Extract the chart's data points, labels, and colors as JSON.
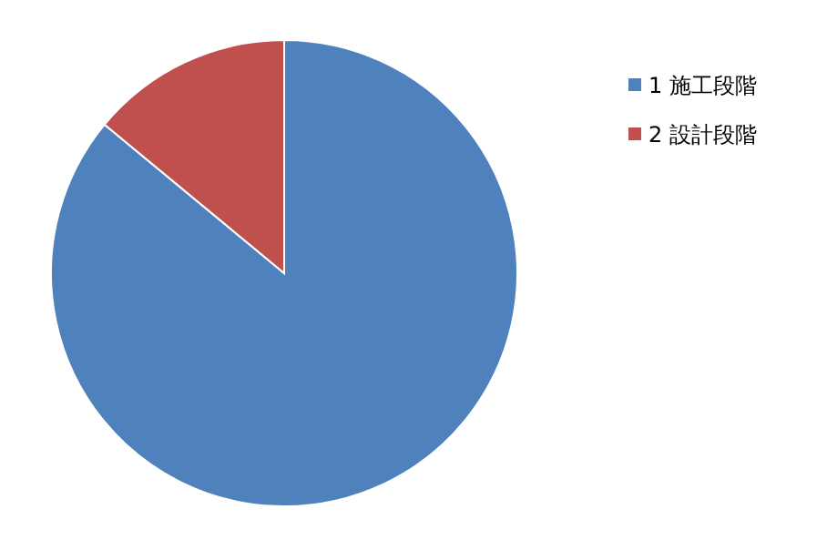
{
  "chart_data": {
    "type": "pie",
    "categories": [
      "1 施工段階",
      "2 設計段階"
    ],
    "values": [
      86,
      14
    ],
    "colors": [
      "#4f81bd",
      "#c0504d"
    ],
    "legend": "right"
  }
}
